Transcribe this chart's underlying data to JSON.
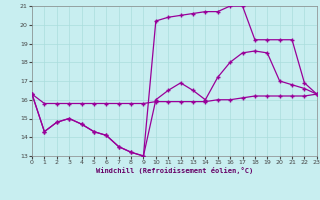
{
  "title": "Windchill (Refroidissement éolien,°C)",
  "bg_color": "#c8eef0",
  "grid_color": "#aadddd",
  "line_color": "#990099",
  "xlim": [
    0,
    23
  ],
  "ylim": [
    13,
    21
  ],
  "xticks": [
    0,
    1,
    2,
    3,
    4,
    5,
    6,
    7,
    8,
    9,
    10,
    11,
    12,
    13,
    14,
    15,
    16,
    17,
    18,
    19,
    20,
    21,
    22,
    23
  ],
  "yticks": [
    13,
    14,
    15,
    16,
    17,
    18,
    19,
    20,
    21
  ],
  "line1_x": [
    0,
    1,
    2,
    3,
    4,
    5,
    6,
    7,
    8,
    9,
    10,
    11,
    12,
    13,
    14,
    15,
    16,
    17,
    18,
    19,
    20,
    21,
    22,
    23
  ],
  "line1_y": [
    16.3,
    15.8,
    15.8,
    15.8,
    15.8,
    15.8,
    15.8,
    15.8,
    15.8,
    15.8,
    15.9,
    15.9,
    15.9,
    15.9,
    15.9,
    16.0,
    16.0,
    16.1,
    16.2,
    16.2,
    16.2,
    16.2,
    16.2,
    16.3
  ],
  "line2_x": [
    0,
    1,
    2,
    3,
    4,
    5,
    6,
    7,
    8,
    9,
    10,
    11,
    12,
    13,
    14,
    15,
    16,
    17,
    18,
    19,
    20,
    21,
    22,
    23
  ],
  "line2_y": [
    16.3,
    14.3,
    14.8,
    15.0,
    14.7,
    14.3,
    14.1,
    13.5,
    13.2,
    13.0,
    16.0,
    16.5,
    16.9,
    16.5,
    16.0,
    17.2,
    18.0,
    18.5,
    18.6,
    18.5,
    17.0,
    16.8,
    16.6,
    16.3
  ],
  "line3_x": [
    0,
    1,
    2,
    3,
    4,
    5,
    6,
    7,
    8,
    9,
    10,
    11,
    12,
    13,
    14,
    15,
    16,
    17,
    18,
    19,
    20,
    21,
    22,
    23
  ],
  "line3_y": [
    16.3,
    14.3,
    14.8,
    15.0,
    14.7,
    14.3,
    14.1,
    13.5,
    13.2,
    13.0,
    20.2,
    20.4,
    20.5,
    20.6,
    20.7,
    20.7,
    21.0,
    21.0,
    19.2,
    19.2,
    19.2,
    19.2,
    16.9,
    16.3
  ],
  "marker": "+",
  "markersize": 3,
  "linewidth": 0.9,
  "title_fontsize": 5,
  "tick_fontsize": 4.5
}
